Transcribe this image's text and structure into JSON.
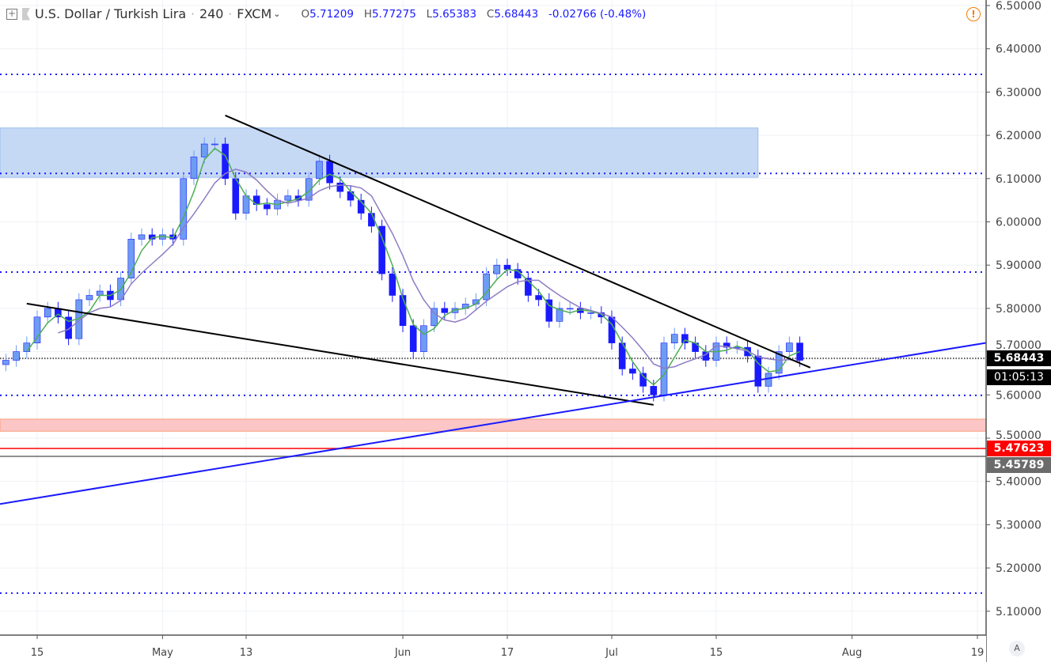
{
  "header": {
    "symbol": "U.S. Dollar / Turkish Lira",
    "interval": "240",
    "exchange": "FXCM",
    "open_label": "O",
    "open": "5.71209",
    "high_label": "H",
    "high": "5.77275",
    "low_label": "L",
    "low": "5.65383",
    "close_label": "C",
    "close": "5.68443",
    "change": "-0.02766 (-0.48%)"
  },
  "price_scale": {
    "current_price": "5.68443",
    "countdown": "01:05:13",
    "red_level": "5.47623",
    "gray_level": "5.45789",
    "auto_button": "A"
  },
  "colors": {
    "up": "#6d9cf2",
    "down": "#1a1aff",
    "sma_fast": "#4caf50",
    "sma_slow": "#8e7cc3",
    "zone_blue": "#c5d9f5",
    "zone_red": "#fcc6c6",
    "level_red": "#ff0000",
    "level_gray": "#6b6b6b"
  },
  "icons": [
    "plus-square-icon",
    "flag-icon",
    "chevron-down-icon",
    "alert-icon"
  ],
  "chart_data": {
    "type": "candlestick",
    "ylim": [
      5.05,
      6.52
    ],
    "yticks": [
      "5.10000",
      "5.20000",
      "5.30000",
      "5.40000",
      "5.50000",
      "5.60000",
      "5.70000",
      "5.80000",
      "5.90000",
      "6.00000",
      "6.10000",
      "6.20000",
      "6.30000",
      "6.40000",
      "6.50000"
    ],
    "xticks": [
      {
        "date": "2019-04-15",
        "label": "15"
      },
      {
        "date": "2019-05-01",
        "label": "May"
      },
      {
        "date": "2019-05-13",
        "label": "13"
      },
      {
        "date": "2019-06-03",
        "label": "Jun"
      },
      {
        "date": "2019-06-17",
        "label": "17"
      },
      {
        "date": "2019-07-01",
        "label": "Jul"
      },
      {
        "date": "2019-07-15",
        "label": "15"
      },
      {
        "date": "2019-08-01",
        "label": "Aug"
      },
      {
        "date": "2019-08-19",
        "label": "19"
      }
    ],
    "closes": [
      [
        "2019-04-10",
        5.68
      ],
      [
        "2019-04-11",
        5.7
      ],
      [
        "2019-04-12",
        5.72
      ],
      [
        "2019-04-15",
        5.78
      ],
      [
        "2019-04-16",
        5.8
      ],
      [
        "2019-04-17",
        5.78
      ],
      [
        "2019-04-18",
        5.73
      ],
      [
        "2019-04-19",
        5.82
      ],
      [
        "2019-04-22",
        5.83
      ],
      [
        "2019-04-23",
        5.84
      ],
      [
        "2019-04-24",
        5.82
      ],
      [
        "2019-04-25",
        5.87
      ],
      [
        "2019-04-26",
        5.96
      ],
      [
        "2019-04-29",
        5.97
      ],
      [
        "2019-04-30",
        5.96
      ],
      [
        "2019-05-01",
        5.97
      ],
      [
        "2019-05-02",
        5.96
      ],
      [
        "2019-05-03",
        6.1
      ],
      [
        "2019-05-06",
        6.15
      ],
      [
        "2019-05-07",
        6.18
      ],
      [
        "2019-05-08",
        6.18
      ],
      [
        "2019-05-09",
        6.1
      ],
      [
        "2019-05-10",
        6.02
      ],
      [
        "2019-05-13",
        6.06
      ],
      [
        "2019-05-14",
        6.04
      ],
      [
        "2019-05-15",
        6.03
      ],
      [
        "2019-05-16",
        6.05
      ],
      [
        "2019-05-17",
        6.06
      ],
      [
        "2019-05-20",
        6.05
      ],
      [
        "2019-05-21",
        6.1
      ],
      [
        "2019-05-22",
        6.14
      ],
      [
        "2019-05-23",
        6.09
      ],
      [
        "2019-05-24",
        6.07
      ],
      [
        "2019-05-27",
        6.05
      ],
      [
        "2019-05-28",
        6.02
      ],
      [
        "2019-05-29",
        5.99
      ],
      [
        "2019-05-30",
        5.88
      ],
      [
        "2019-05-31",
        5.83
      ],
      [
        "2019-06-03",
        5.76
      ],
      [
        "2019-06-04",
        5.7
      ],
      [
        "2019-06-05",
        5.76
      ],
      [
        "2019-06-06",
        5.8
      ],
      [
        "2019-06-07",
        5.79
      ],
      [
        "2019-06-10",
        5.8
      ],
      [
        "2019-06-11",
        5.81
      ],
      [
        "2019-06-12",
        5.82
      ],
      [
        "2019-06-13",
        5.88
      ],
      [
        "2019-06-14",
        5.9
      ],
      [
        "2019-06-17",
        5.89
      ],
      [
        "2019-06-18",
        5.87
      ],
      [
        "2019-06-19",
        5.83
      ],
      [
        "2019-06-20",
        5.82
      ],
      [
        "2019-06-21",
        5.77
      ],
      [
        "2019-06-24",
        5.8
      ],
      [
        "2019-06-25",
        5.8
      ],
      [
        "2019-06-26",
        5.79
      ],
      [
        "2019-06-27",
        5.79
      ],
      [
        "2019-06-28",
        5.78
      ],
      [
        "2019-07-01",
        5.72
      ],
      [
        "2019-07-02",
        5.66
      ],
      [
        "2019-07-03",
        5.65
      ],
      [
        "2019-07-04",
        5.62
      ],
      [
        "2019-07-05",
        5.6
      ],
      [
        "2019-07-08",
        5.72
      ],
      [
        "2019-07-09",
        5.74
      ],
      [
        "2019-07-10",
        5.72
      ],
      [
        "2019-07-11",
        5.7
      ],
      [
        "2019-07-12",
        5.68
      ],
      [
        "2019-07-15",
        5.72
      ],
      [
        "2019-07-16",
        5.71
      ],
      [
        "2019-07-17",
        5.71
      ],
      [
        "2019-07-18",
        5.69
      ],
      [
        "2019-07-19",
        5.62
      ],
      [
        "2019-07-22",
        5.65
      ],
      [
        "2019-07-23",
        5.7
      ],
      [
        "2019-07-24",
        5.72
      ],
      [
        "2019-07-25",
        5.68
      ]
    ],
    "horizontal_levels": [
      {
        "price": 6.341,
        "style": "dotted",
        "color": "#1a1aff"
      },
      {
        "price": 6.112,
        "style": "dotted",
        "color": "#1a1aff"
      },
      {
        "price": 5.884,
        "style": "dotted",
        "color": "#1a1aff"
      },
      {
        "price": 5.599,
        "style": "dotted",
        "color": "#1a1aff"
      },
      {
        "price": 5.142,
        "style": "dotted",
        "color": "#1a1aff"
      },
      {
        "price": 5.68443,
        "style": "dotted",
        "color": "#555555"
      },
      {
        "price": 5.47623,
        "style": "solid",
        "color": "#ff0000"
      },
      {
        "price": 5.45789,
        "style": "solid",
        "color": "#6b6b6b"
      }
    ],
    "zones": [
      {
        "from": 6.103,
        "to": 6.217,
        "end_date": "2019-07-19",
        "color": "#c5d9f5",
        "border": "#9dbcf0"
      },
      {
        "from": 5.516,
        "to": 5.544,
        "end_date": null,
        "color": "#fcc6c6",
        "border": "#f7a07a"
      }
    ],
    "trendlines": [
      {
        "from": [
          "2019-05-09",
          6.246
        ],
        "to": [
          "2019-07-26",
          5.663
        ],
        "color": "#000000"
      },
      {
        "from": [
          "2019-04-12",
          5.811
        ],
        "to": [
          "2019-07-05",
          5.577
        ],
        "color": "#000000"
      },
      {
        "from": [
          "2019-04-10",
          5.35
        ],
        "to": [
          "2019-08-20",
          5.721
        ],
        "color": "#1a1aff"
      }
    ]
  }
}
